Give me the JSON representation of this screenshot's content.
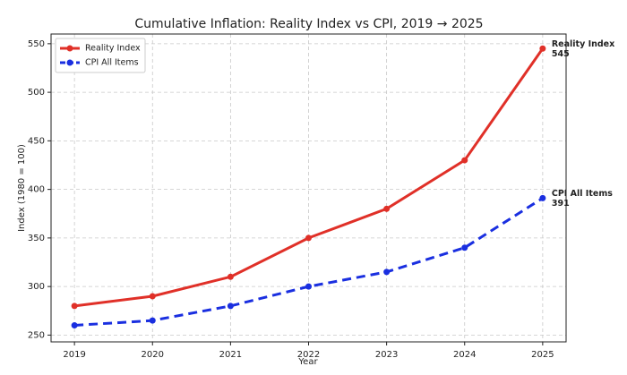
{
  "chart_data": {
    "type": "line",
    "title": "Cumulative Inflation: Reality Index vs CPI, 2019 → 2025",
    "xlabel": "Year",
    "ylabel": "Index (1980 = 100)",
    "x": [
      2019,
      2020,
      2021,
      2022,
      2023,
      2024,
      2025
    ],
    "series": [
      {
        "name": "Reality Index",
        "color": "#e03028",
        "linestyle": "solid",
        "values": [
          280,
          290,
          310,
          350,
          380,
          430,
          545
        ]
      },
      {
        "name": "CPI All Items",
        "color": "#1a2fe0",
        "linestyle": "dashed",
        "values": [
          260,
          265,
          280,
          300,
          315,
          340,
          391
        ]
      }
    ],
    "xlim": [
      2018.7,
      2025.3
    ],
    "xticks": [
      2019,
      2020,
      2021,
      2022,
      2023,
      2024,
      2025
    ],
    "ylim": [
      243,
      560
    ],
    "yticks": [
      250,
      300,
      350,
      400,
      450,
      500,
      550
    ],
    "grid": true,
    "legend": "upper left"
  }
}
